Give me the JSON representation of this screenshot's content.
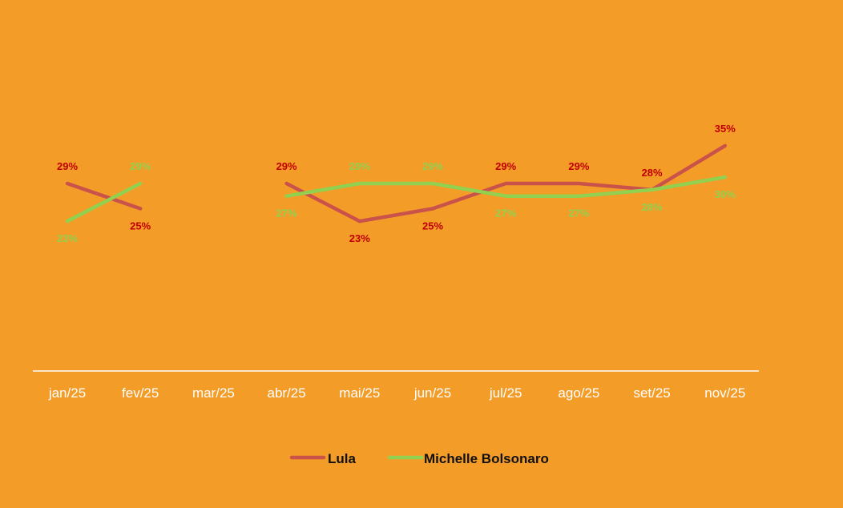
{
  "chart_data": {
    "type": "line",
    "categories": [
      "jan/25",
      "fev/25",
      "mar/25",
      "abr/25",
      "mai/25",
      "jun/25",
      "jul/25",
      "ago/25",
      "set/25",
      "nov/25"
    ],
    "series": [
      {
        "name": "Lula",
        "color": "#C9524A",
        "label_color": "#C00000",
        "values": [
          29,
          25,
          null,
          29,
          23,
          25,
          29,
          29,
          28,
          35
        ],
        "labels": [
          "29%",
          "25%",
          "",
          "29%",
          "23%",
          "25%",
          "29%",
          "29%",
          "28%",
          "35%"
        ]
      },
      {
        "name": "Michelle Bolsonaro",
        "color": "#92D050",
        "label_color": "#92D050",
        "values": [
          23,
          29,
          null,
          27,
          29,
          29,
          27,
          27,
          28,
          30
        ],
        "labels": [
          "23%",
          "29%",
          "",
          "27%",
          "29%",
          "29%",
          "27%",
          "27%",
          "28%",
          "30%"
        ]
      }
    ],
    "ylim": [
      10,
      45
    ],
    "grid": false,
    "legend_position": "bottom",
    "axis_color": "#FFFFFF",
    "background": "#F49C28"
  }
}
